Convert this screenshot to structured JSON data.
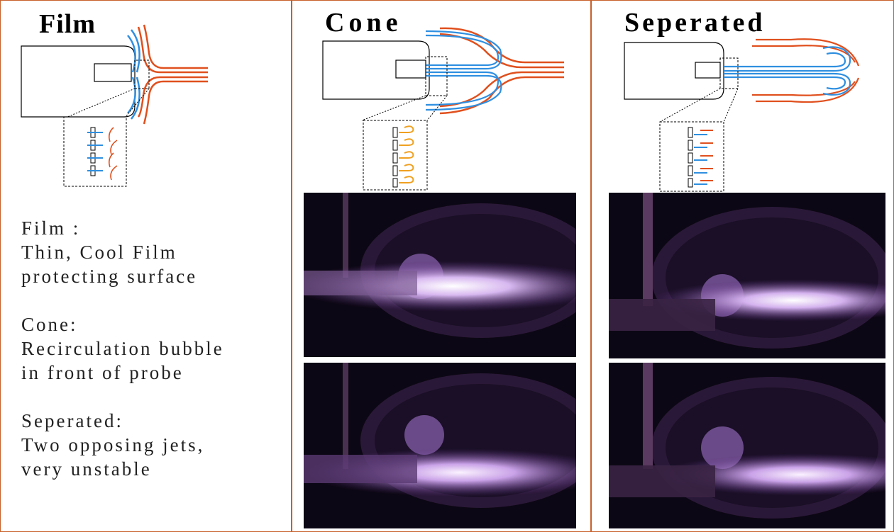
{
  "panels": [
    {
      "id": "film",
      "title": "Film"
    },
    {
      "id": "cone",
      "title": "Cone"
    },
    {
      "id": "separated",
      "title": "Seperated"
    }
  ],
  "description": [
    {
      "heading": "Film :",
      "lines": [
        "Thin, Cool Film",
        "protecting surface"
      ]
    },
    {
      "heading": "Cone:",
      "lines": [
        "Recirculation bubble",
        "in front of probe"
      ]
    },
    {
      "heading": "Seperated:",
      "lines": [
        "Two opposing jets,",
        "very unstable"
      ]
    }
  ],
  "colors": {
    "frame": "#c8602a",
    "plasma_flow": "#e0501e",
    "cooling_flow": "#2f8fe0",
    "vortex": "#f0a020",
    "photo_background": "#0c0714",
    "plasma_glow": "#c9a8e6"
  }
}
